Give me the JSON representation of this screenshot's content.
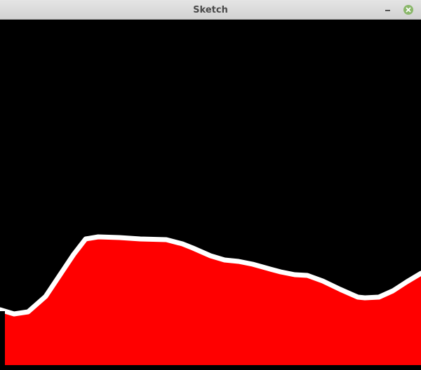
{
  "window": {
    "title": "Sketch"
  },
  "colors": {
    "titlebar": "#d9d9d9",
    "title_text": "#4a4a4a",
    "close_button": "#8ab76a",
    "canvas_background": "#000000",
    "terrain_fill": "#ff0000",
    "terrain_outline": "#ffffff"
  },
  "icons": {
    "minimize": "minimize-icon",
    "close": "close-icon"
  }
}
